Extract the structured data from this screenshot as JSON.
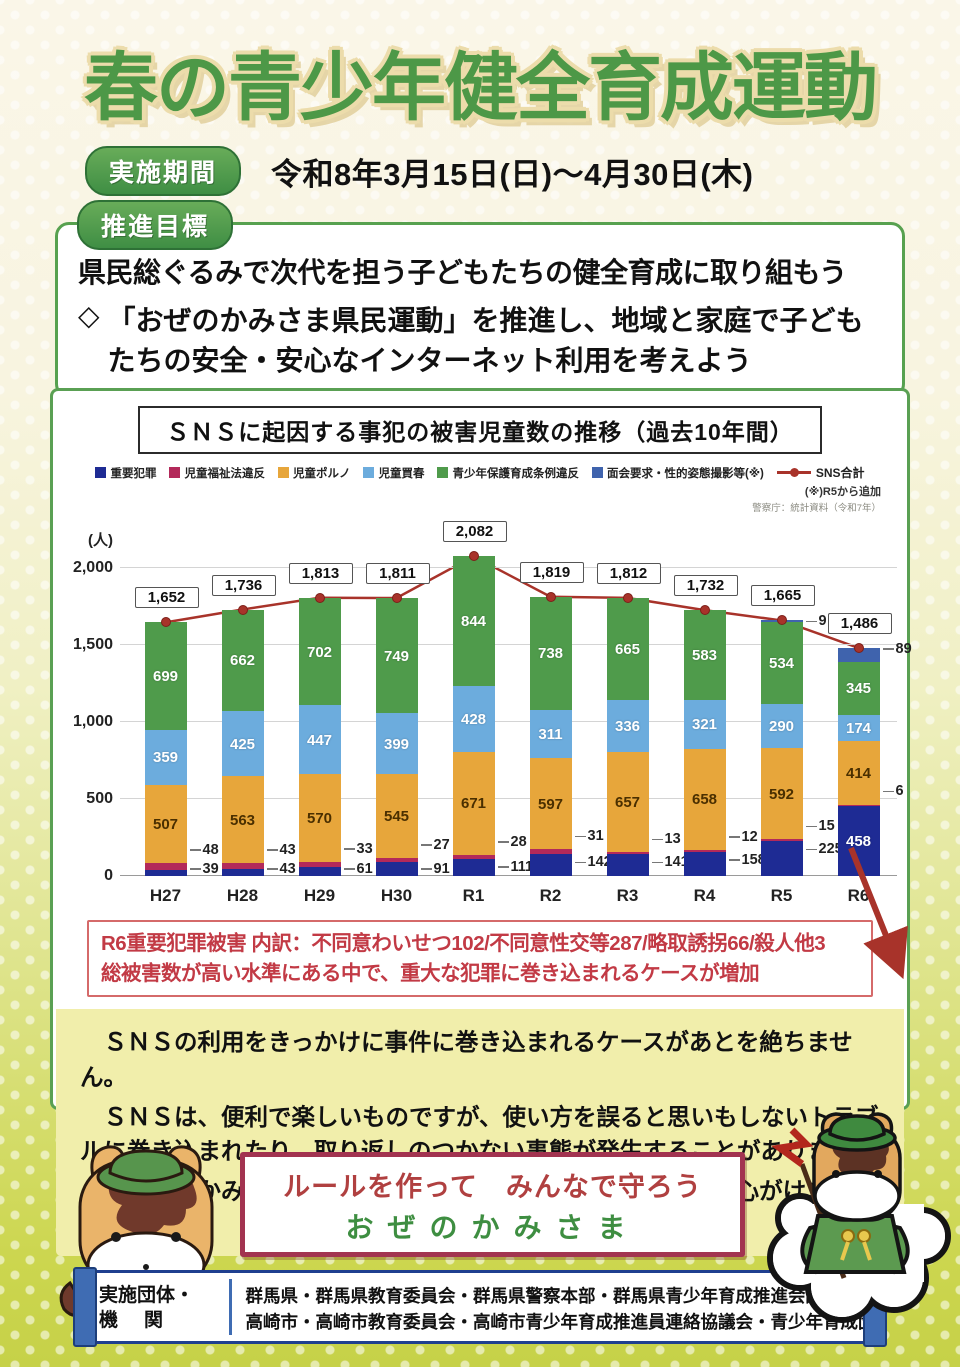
{
  "header": {
    "title": "春の青少年健全育成運動"
  },
  "period": {
    "badge": "実施期間",
    "text": "令和8年3月15日(日)～4月30日(木)"
  },
  "goals": {
    "badge": "推進目標",
    "line1": "県民総ぐるみで次代を担う子どもたちの健全育成に取り組もう",
    "bullet": "◇",
    "line2a": "「おぜのかみさま県民運動」を推進し、地域と家庭で子ども",
    "line2b": "たちの安全・安心なインターネット利用を考えよう"
  },
  "chart": {
    "title": "ＳＮＳに起因する事犯の被害児童数の推移（過去10年間）",
    "unit_label": "(人)",
    "y_ticks": [
      "0",
      "500",
      "1,000",
      "1,500",
      "2,000"
    ],
    "line_legend": "SNS合計",
    "legend_note": "(※)R5から追加",
    "source": "警察庁：統計資料（令和7年）"
  },
  "chart_data": {
    "type": "stacked-bar-line",
    "categories": [
      "H27",
      "H28",
      "H29",
      "H30",
      "R1",
      "R2",
      "R3",
      "R4",
      "R5",
      "R6"
    ],
    "series": [
      {
        "name": "重要犯罪",
        "color": "#1e2b94",
        "values": [
          39,
          43,
          61,
          91,
          111,
          142,
          141,
          158,
          225,
          458
        ]
      },
      {
        "name": "児童福祉法違反",
        "color": "#b3295a",
        "values": [
          48,
          43,
          33,
          27,
          28,
          31,
          13,
          12,
          15,
          6
        ]
      },
      {
        "name": "児童ポルノ",
        "color": "#e7a63b",
        "values": [
          507,
          563,
          570,
          545,
          671,
          597,
          657,
          658,
          592,
          414
        ]
      },
      {
        "name": "児童買春",
        "color": "#6cacdd",
        "values": [
          359,
          425,
          447,
          399,
          428,
          311,
          336,
          321,
          290,
          174
        ]
      },
      {
        "name": "青少年保護育成条例違反",
        "color": "#4f9b4b",
        "values": [
          699,
          662,
          702,
          749,
          844,
          738,
          665,
          583,
          534,
          345
        ]
      },
      {
        "name": "面会要求・性的姿態撮影等(※)",
        "color": "#3f63ad",
        "values": [
          null,
          null,
          null,
          null,
          null,
          null,
          null,
          null,
          9,
          89
        ]
      }
    ],
    "totals": [
      1652,
      1736,
      1813,
      1811,
      2082,
      1819,
      1812,
      1732,
      1665,
      1486
    ],
    "line": {
      "name": "SNS合計",
      "color": "#a8332a"
    },
    "ylim": [
      0,
      2000
    ],
    "ylabel": "(人)",
    "grid": true,
    "legend_position": "top"
  },
  "red_note": {
    "line1": "R6重要犯罪被害 内訳：不同意わいせつ102/不同意性交等287/略取誘拐66/殺人他3",
    "line2": "総被害数が高い水準にある中で、重大な犯罪に巻き込まれるケースが増加"
  },
  "yellow_note": {
    "p1": "ＳＮＳの利用をきっかけに事件に巻き込まれるケースがあとを絶ちません。",
    "p2": "ＳＮＳは、便利で楽しいものですが、使い方を誤ると思いもしないトラブルに巻き込まれたり、取り返しのつかない事態が発生することがあります。",
    "p3": "「おぜのかみさま」を守って、安全・安心なＳＮＳの利用を心がけましょう。"
  },
  "slogan": {
    "line1": "ルールを作って　みんなで守ろう",
    "line2": "おぜのかみさま"
  },
  "footer": {
    "label_line1": "実施団体・",
    "label_line2": "機関",
    "orgs_line1": "群馬県・群馬県教育委員会・群馬県警察本部・群馬県青少年育成推進会議・",
    "orgs_line2": "高崎市・高崎市教育委員会・高崎市青少年育成推進員連絡協議会・青少年育成団体"
  }
}
